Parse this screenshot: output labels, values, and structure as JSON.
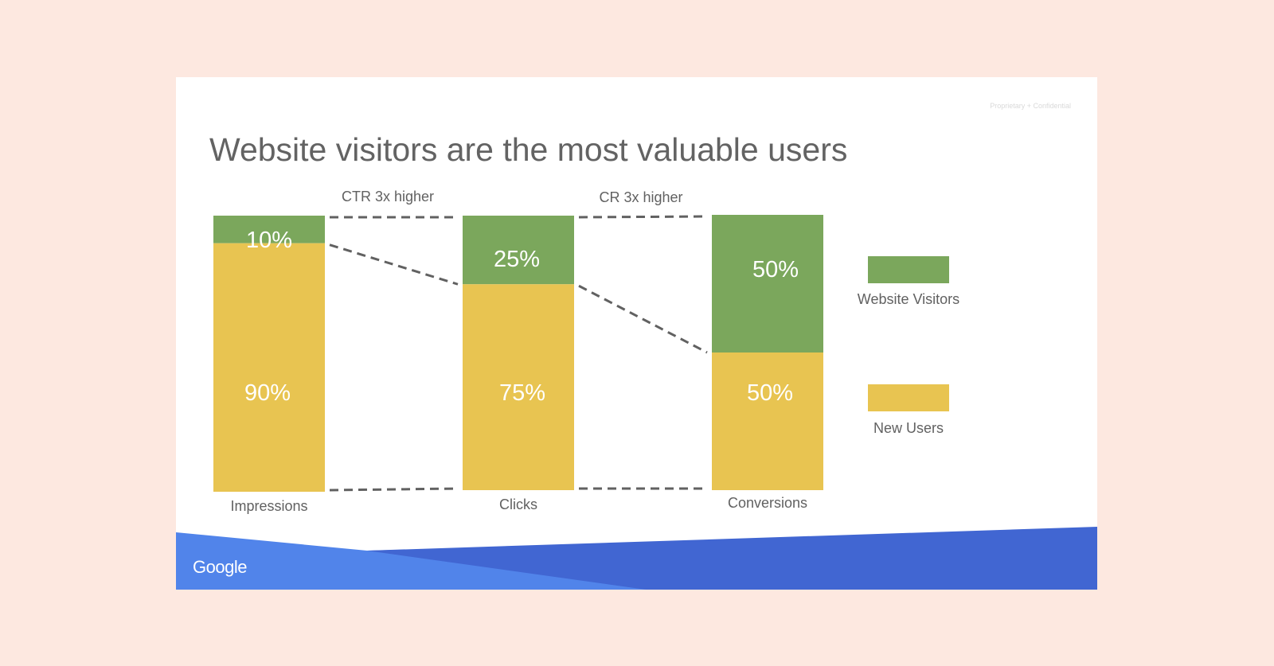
{
  "slide": {
    "confidential_note": "Proprietary + Confidential",
    "title": "Website visitors are the most valuable users",
    "brand": "Google"
  },
  "colors": {
    "page_background": "#fde8e0",
    "website_visitors": "#7ba75c",
    "new_users": "#e8c451",
    "connector": "#616161",
    "footer_light_blue": "#5184ea",
    "footer_dark_blue": "#4166d2"
  },
  "chart_data": {
    "type": "bar",
    "stacked": true,
    "normalized_percent": true,
    "title": "Website visitors are the most valuable users",
    "categories": [
      "Impressions",
      "Clicks",
      "Conversions"
    ],
    "series": [
      {
        "name": "New Users",
        "color": "#e8c451",
        "values": [
          90,
          75,
          50
        ],
        "labels": [
          "90%",
          "75%",
          "50%"
        ]
      },
      {
        "name": "Website Visitors",
        "color": "#7ba75c",
        "values": [
          10,
          25,
          50
        ],
        "labels": [
          "10%",
          "25%",
          "50%"
        ]
      }
    ],
    "annotations": [
      "CTR 3x higher",
      "CR 3x higher"
    ],
    "legend": [
      "Website Visitors",
      "New Users"
    ],
    "legend_position": "right",
    "ylim": [
      0,
      100
    ],
    "grid": false
  }
}
